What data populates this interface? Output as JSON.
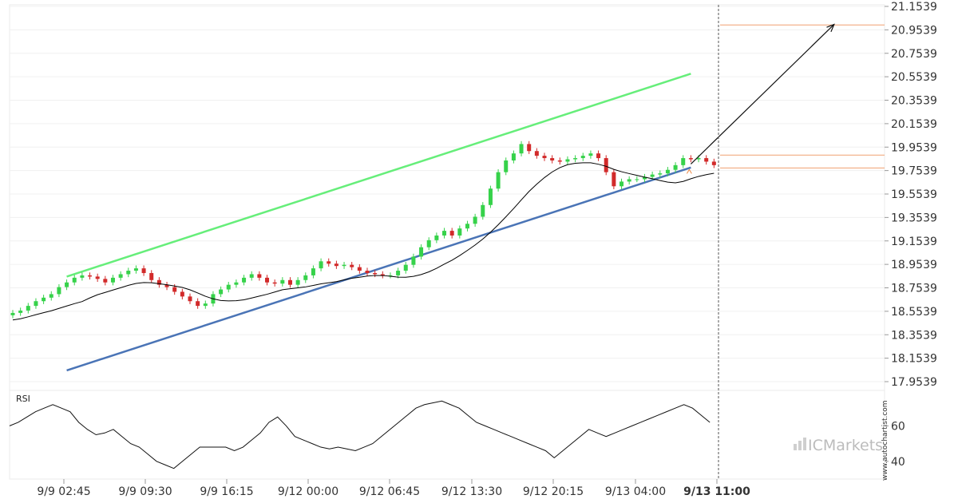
{
  "chart_data": [
    {
      "type": "candlestick",
      "title": "",
      "yticks": [
        "21.1539",
        "20.9539",
        "20.7539",
        "20.5539",
        "20.3539",
        "20.1539",
        "19.9539",
        "19.7539",
        "19.5539",
        "19.3539",
        "19.1539",
        "18.9539",
        "18.7539",
        "18.5539",
        "18.3539",
        "18.1539",
        "17.9539"
      ],
      "ylim": [
        17.9539,
        21.1539
      ],
      "xticks": [
        "9/9 02:45",
        "9/9 09:30",
        "9/9 16:15",
        "9/12 00:00",
        "9/12 06:45",
        "9/12 13:30",
        "9/12 20:15",
        "9/13 04:00",
        "9/13 11:00"
      ],
      "current_time_label": "9/13 11:00",
      "close_series": [
        18.54,
        18.56,
        18.6,
        18.64,
        18.67,
        18.7,
        18.76,
        18.8,
        18.84,
        18.86,
        18.85,
        18.83,
        18.8,
        18.84,
        18.87,
        18.9,
        18.92,
        18.88,
        18.82,
        18.78,
        18.76,
        18.72,
        18.68,
        18.64,
        18.6,
        18.62,
        18.7,
        18.74,
        18.78,
        18.8,
        18.84,
        18.87,
        18.84,
        18.8,
        18.79,
        18.82,
        18.78,
        18.82,
        18.86,
        18.92,
        18.98,
        18.96,
        18.94,
        18.95,
        18.93,
        18.9,
        18.88,
        18.87,
        18.86,
        18.86,
        18.9,
        18.95,
        19.02,
        19.1,
        19.16,
        19.2,
        19.24,
        19.2,
        19.26,
        19.3,
        19.36,
        19.46,
        19.6,
        19.74,
        19.84,
        19.9,
        19.98,
        19.92,
        19.88,
        19.86,
        19.84,
        19.83,
        19.85,
        19.86,
        19.88,
        19.9,
        19.86,
        19.74,
        19.62,
        19.66,
        19.68,
        19.68,
        19.7,
        19.72,
        19.73,
        19.76,
        19.8,
        19.86,
        19.85,
        19.86,
        19.83,
        19.8
      ],
      "upper_channel": {
        "start": [
          7,
          18.85
        ],
        "end": [
          88,
          20.58
        ],
        "color": "#66ee7a"
      },
      "lower_channel": {
        "start": [
          7,
          18.05
        ],
        "end": [
          88,
          19.78
        ],
        "color": "#4a74b6"
      },
      "forecast": {
        "from": [
          88,
          19.81
        ],
        "to": [
          107,
          21.0
        ],
        "target_level": 20.9959,
        "resistance_level": 19.8859,
        "support_level": 19.7759
      },
      "moving_average": "black",
      "bull_color": "#36d24a",
      "bear_color": "#d22a2a",
      "indicator": {
        "name": "RSI",
        "yticks": [
          "60",
          "40"
        ],
        "ylim": [
          30,
          80
        ],
        "values": [
          60,
          62,
          65,
          68,
          70,
          72,
          70,
          68,
          62,
          58,
          55,
          56,
          58,
          54,
          50,
          48,
          44,
          40,
          38,
          36,
          40,
          44,
          48,
          48,
          48,
          48,
          46,
          48,
          52,
          56,
          62,
          65,
          60,
          54,
          52,
          50,
          48,
          47,
          48,
          47,
          46,
          48,
          50,
          54,
          58,
          62,
          66,
          70,
          72,
          73,
          74,
          72,
          70,
          66,
          62,
          60,
          58,
          56,
          54,
          52,
          50,
          48,
          46,
          42,
          46,
          50,
          54,
          58,
          56,
          54,
          56,
          58,
          60,
          62,
          64,
          66,
          68,
          70,
          72,
          70,
          66,
          62
        ],
        "watermark": "ICMarkets",
        "source": "www.autochartist.com"
      }
    }
  ]
}
